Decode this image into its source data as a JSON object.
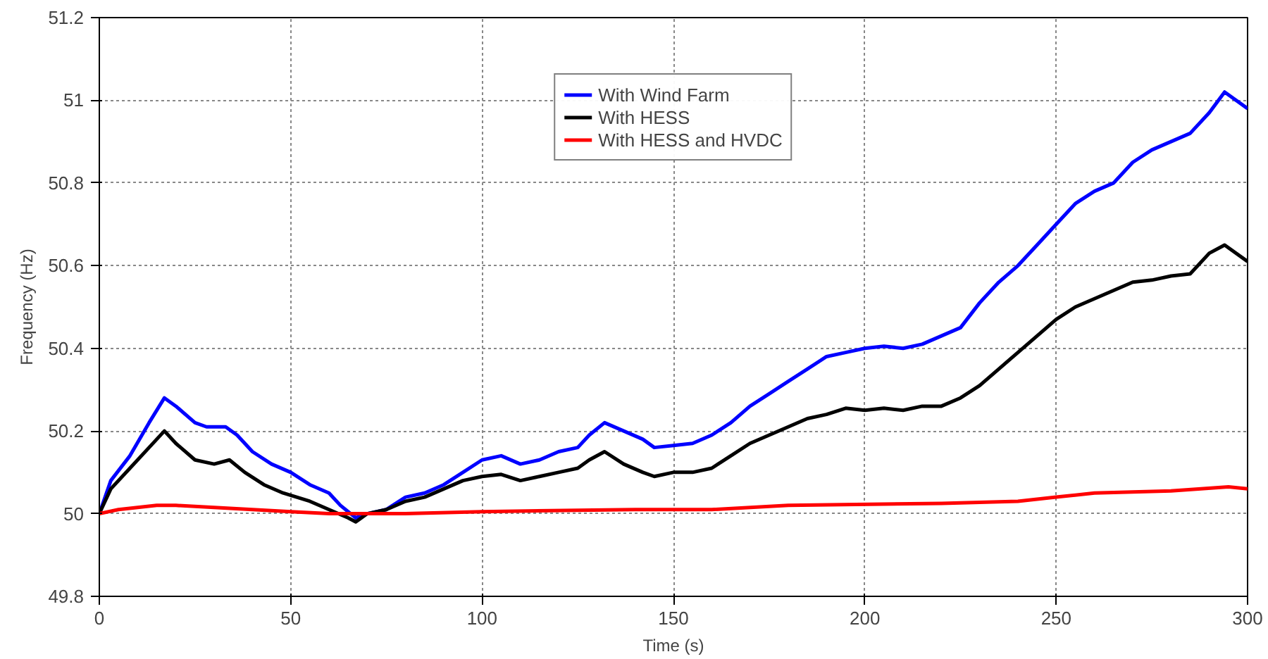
{
  "chart_data": {
    "type": "line",
    "xlabel": "Time (s)",
    "ylabel": "Frequency (Hz)",
    "xlim": [
      0,
      300
    ],
    "ylim": [
      49.8,
      51.2
    ],
    "xticks": [
      0,
      50,
      100,
      150,
      200,
      250,
      300
    ],
    "yticks": [
      {
        "value": 49.8,
        "label": "49.8"
      },
      {
        "value": 50,
        "label": "50"
      },
      {
        "value": 50.2,
        "label": "50.2"
      },
      {
        "value": 50.4,
        "label": "50.4"
      },
      {
        "value": 50.6,
        "label": "50.6"
      },
      {
        "value": 50.8,
        "label": "50.8"
      },
      {
        "value": 51,
        "label": "51"
      },
      {
        "value": 51.2,
        "label": "51.2"
      }
    ],
    "grid": true,
    "legend": "top",
    "line_style": "solid",
    "marker": "none",
    "series": [
      {
        "name": "With Wind Farm",
        "color": "#0000ff",
        "x": [
          0,
          3,
          8,
          13,
          17,
          20,
          25,
          28,
          33,
          36,
          40,
          45,
          50,
          55,
          60,
          63,
          67,
          70,
          75,
          80,
          85,
          90,
          95,
          100,
          105,
          110,
          115,
          120,
          125,
          128,
          132,
          137,
          142,
          145,
          150,
          155,
          160,
          165,
          170,
          175,
          180,
          185,
          190,
          195,
          200,
          205,
          210,
          215,
          220,
          225,
          230,
          235,
          240,
          245,
          250,
          255,
          260,
          265,
          270,
          275,
          280,
          285,
          290,
          294,
          300
        ],
        "values": [
          50.0,
          50.08,
          50.14,
          50.22,
          50.28,
          50.26,
          50.22,
          50.21,
          50.21,
          50.19,
          50.15,
          50.12,
          50.1,
          50.07,
          50.05,
          50.02,
          49.99,
          50.0,
          50.01,
          50.04,
          50.05,
          50.07,
          50.1,
          50.13,
          50.14,
          50.12,
          50.13,
          50.15,
          50.16,
          50.19,
          50.22,
          50.2,
          50.18,
          50.16,
          50.165,
          50.17,
          50.19,
          50.22,
          50.26,
          50.29,
          50.32,
          50.35,
          50.38,
          50.39,
          50.4,
          50.405,
          50.4,
          50.41,
          50.43,
          50.45,
          50.51,
          50.56,
          50.6,
          50.65,
          50.7,
          50.75,
          50.78,
          50.8,
          50.85,
          50.88,
          50.9,
          50.92,
          50.97,
          51.02,
          50.98
        ]
      },
      {
        "name": "With HESS",
        "color": "#000000",
        "x": [
          0,
          3,
          8,
          13,
          17,
          20,
          25,
          30,
          34,
          38,
          43,
          48,
          55,
          60,
          65,
          67,
          70,
          75,
          80,
          85,
          90,
          95,
          100,
          105,
          110,
          115,
          120,
          125,
          128,
          132,
          137,
          142,
          145,
          150,
          155,
          160,
          165,
          170,
          175,
          180,
          185,
          190,
          195,
          200,
          205,
          210,
          215,
          220,
          225,
          230,
          235,
          240,
          245,
          250,
          255,
          260,
          265,
          270,
          275,
          280,
          285,
          290,
          294,
          300
        ],
        "values": [
          50.0,
          50.06,
          50.11,
          50.16,
          50.2,
          50.17,
          50.13,
          50.12,
          50.13,
          50.1,
          50.07,
          50.05,
          50.03,
          50.01,
          49.99,
          49.98,
          50.0,
          50.01,
          50.03,
          50.04,
          50.06,
          50.08,
          50.09,
          50.095,
          50.08,
          50.09,
          50.1,
          50.11,
          50.13,
          50.15,
          50.12,
          50.1,
          50.09,
          50.1,
          50.1,
          50.11,
          50.14,
          50.17,
          50.19,
          50.21,
          50.23,
          50.24,
          50.255,
          50.25,
          50.255,
          50.25,
          50.26,
          50.26,
          50.28,
          50.31,
          50.35,
          50.39,
          50.43,
          50.47,
          50.5,
          50.52,
          50.54,
          50.56,
          50.565,
          50.575,
          50.58,
          50.63,
          50.65,
          50.61
        ]
      },
      {
        "name": "With HESS and HVDC",
        "color": "#ff0000",
        "x": [
          0,
          5,
          15,
          20,
          30,
          50,
          60,
          70,
          80,
          100,
          140,
          160,
          180,
          220,
          240,
          250,
          260,
          280,
          295,
          300
        ],
        "values": [
          50.0,
          50.01,
          50.02,
          50.02,
          50.015,
          50.005,
          50.0,
          50.0,
          50.0,
          50.005,
          50.01,
          50.01,
          50.02,
          50.025,
          50.03,
          50.04,
          50.05,
          50.055,
          50.065,
          50.06
        ]
      }
    ]
  }
}
